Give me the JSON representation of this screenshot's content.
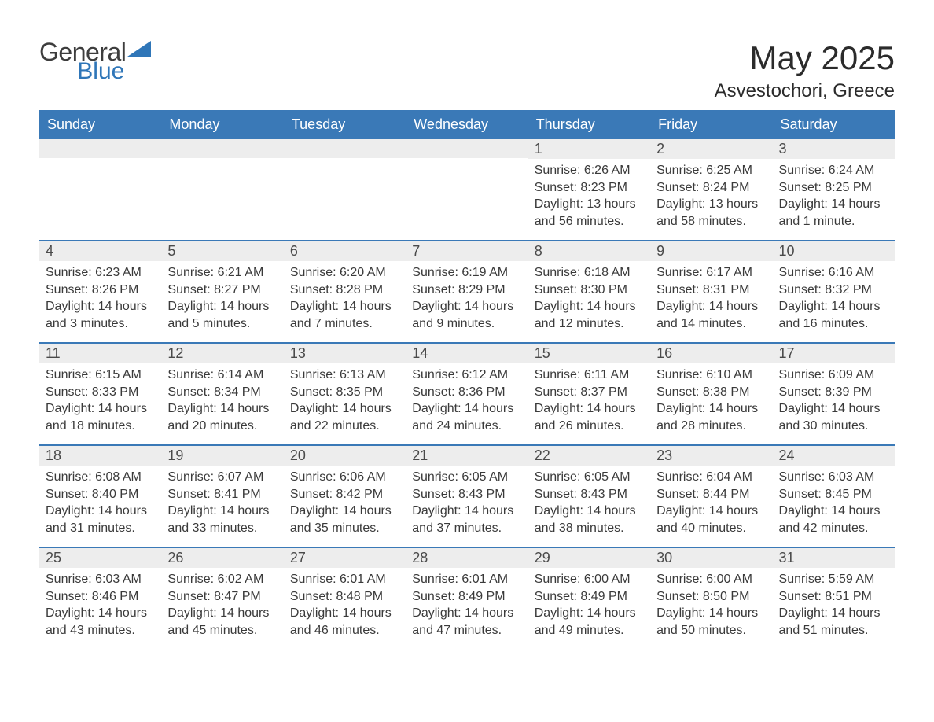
{
  "brand": {
    "general": "General",
    "blue": "Blue"
  },
  "title": "May 2025",
  "location": "Asvestochori, Greece",
  "colors": {
    "header_bg": "#3a79b7",
    "header_text": "#ffffff",
    "row_border": "#3a79b7",
    "daynum_bg": "#ededed",
    "body_text": "#3a3a3a",
    "logo_blue": "#2f76b8",
    "page_bg": "#ffffff"
  },
  "weekdays": [
    "Sunday",
    "Monday",
    "Tuesday",
    "Wednesday",
    "Thursday",
    "Friday",
    "Saturday"
  ],
  "weeks": [
    [
      {
        "n": "",
        "sr": "",
        "ss": "",
        "dl": ""
      },
      {
        "n": "",
        "sr": "",
        "ss": "",
        "dl": ""
      },
      {
        "n": "",
        "sr": "",
        "ss": "",
        "dl": ""
      },
      {
        "n": "",
        "sr": "",
        "ss": "",
        "dl": ""
      },
      {
        "n": "1",
        "sr": "Sunrise: 6:26 AM",
        "ss": "Sunset: 8:23 PM",
        "dl": "Daylight: 13 hours and 56 minutes."
      },
      {
        "n": "2",
        "sr": "Sunrise: 6:25 AM",
        "ss": "Sunset: 8:24 PM",
        "dl": "Daylight: 13 hours and 58 minutes."
      },
      {
        "n": "3",
        "sr": "Sunrise: 6:24 AM",
        "ss": "Sunset: 8:25 PM",
        "dl": "Daylight: 14 hours and 1 minute."
      }
    ],
    [
      {
        "n": "4",
        "sr": "Sunrise: 6:23 AM",
        "ss": "Sunset: 8:26 PM",
        "dl": "Daylight: 14 hours and 3 minutes."
      },
      {
        "n": "5",
        "sr": "Sunrise: 6:21 AM",
        "ss": "Sunset: 8:27 PM",
        "dl": "Daylight: 14 hours and 5 minutes."
      },
      {
        "n": "6",
        "sr": "Sunrise: 6:20 AM",
        "ss": "Sunset: 8:28 PM",
        "dl": "Daylight: 14 hours and 7 minutes."
      },
      {
        "n": "7",
        "sr": "Sunrise: 6:19 AM",
        "ss": "Sunset: 8:29 PM",
        "dl": "Daylight: 14 hours and 9 minutes."
      },
      {
        "n": "8",
        "sr": "Sunrise: 6:18 AM",
        "ss": "Sunset: 8:30 PM",
        "dl": "Daylight: 14 hours and 12 minutes."
      },
      {
        "n": "9",
        "sr": "Sunrise: 6:17 AM",
        "ss": "Sunset: 8:31 PM",
        "dl": "Daylight: 14 hours and 14 minutes."
      },
      {
        "n": "10",
        "sr": "Sunrise: 6:16 AM",
        "ss": "Sunset: 8:32 PM",
        "dl": "Daylight: 14 hours and 16 minutes."
      }
    ],
    [
      {
        "n": "11",
        "sr": "Sunrise: 6:15 AM",
        "ss": "Sunset: 8:33 PM",
        "dl": "Daylight: 14 hours and 18 minutes."
      },
      {
        "n": "12",
        "sr": "Sunrise: 6:14 AM",
        "ss": "Sunset: 8:34 PM",
        "dl": "Daylight: 14 hours and 20 minutes."
      },
      {
        "n": "13",
        "sr": "Sunrise: 6:13 AM",
        "ss": "Sunset: 8:35 PM",
        "dl": "Daylight: 14 hours and 22 minutes."
      },
      {
        "n": "14",
        "sr": "Sunrise: 6:12 AM",
        "ss": "Sunset: 8:36 PM",
        "dl": "Daylight: 14 hours and 24 minutes."
      },
      {
        "n": "15",
        "sr": "Sunrise: 6:11 AM",
        "ss": "Sunset: 8:37 PM",
        "dl": "Daylight: 14 hours and 26 minutes."
      },
      {
        "n": "16",
        "sr": "Sunrise: 6:10 AM",
        "ss": "Sunset: 8:38 PM",
        "dl": "Daylight: 14 hours and 28 minutes."
      },
      {
        "n": "17",
        "sr": "Sunrise: 6:09 AM",
        "ss": "Sunset: 8:39 PM",
        "dl": "Daylight: 14 hours and 30 minutes."
      }
    ],
    [
      {
        "n": "18",
        "sr": "Sunrise: 6:08 AM",
        "ss": "Sunset: 8:40 PM",
        "dl": "Daylight: 14 hours and 31 minutes."
      },
      {
        "n": "19",
        "sr": "Sunrise: 6:07 AM",
        "ss": "Sunset: 8:41 PM",
        "dl": "Daylight: 14 hours and 33 minutes."
      },
      {
        "n": "20",
        "sr": "Sunrise: 6:06 AM",
        "ss": "Sunset: 8:42 PM",
        "dl": "Daylight: 14 hours and 35 minutes."
      },
      {
        "n": "21",
        "sr": "Sunrise: 6:05 AM",
        "ss": "Sunset: 8:43 PM",
        "dl": "Daylight: 14 hours and 37 minutes."
      },
      {
        "n": "22",
        "sr": "Sunrise: 6:05 AM",
        "ss": "Sunset: 8:43 PM",
        "dl": "Daylight: 14 hours and 38 minutes."
      },
      {
        "n": "23",
        "sr": "Sunrise: 6:04 AM",
        "ss": "Sunset: 8:44 PM",
        "dl": "Daylight: 14 hours and 40 minutes."
      },
      {
        "n": "24",
        "sr": "Sunrise: 6:03 AM",
        "ss": "Sunset: 8:45 PM",
        "dl": "Daylight: 14 hours and 42 minutes."
      }
    ],
    [
      {
        "n": "25",
        "sr": "Sunrise: 6:03 AM",
        "ss": "Sunset: 8:46 PM",
        "dl": "Daylight: 14 hours and 43 minutes."
      },
      {
        "n": "26",
        "sr": "Sunrise: 6:02 AM",
        "ss": "Sunset: 8:47 PM",
        "dl": "Daylight: 14 hours and 45 minutes."
      },
      {
        "n": "27",
        "sr": "Sunrise: 6:01 AM",
        "ss": "Sunset: 8:48 PM",
        "dl": "Daylight: 14 hours and 46 minutes."
      },
      {
        "n": "28",
        "sr": "Sunrise: 6:01 AM",
        "ss": "Sunset: 8:49 PM",
        "dl": "Daylight: 14 hours and 47 minutes."
      },
      {
        "n": "29",
        "sr": "Sunrise: 6:00 AM",
        "ss": "Sunset: 8:49 PM",
        "dl": "Daylight: 14 hours and 49 minutes."
      },
      {
        "n": "30",
        "sr": "Sunrise: 6:00 AM",
        "ss": "Sunset: 8:50 PM",
        "dl": "Daylight: 14 hours and 50 minutes."
      },
      {
        "n": "31",
        "sr": "Sunrise: 5:59 AM",
        "ss": "Sunset: 8:51 PM",
        "dl": "Daylight: 14 hours and 51 minutes."
      }
    ]
  ]
}
